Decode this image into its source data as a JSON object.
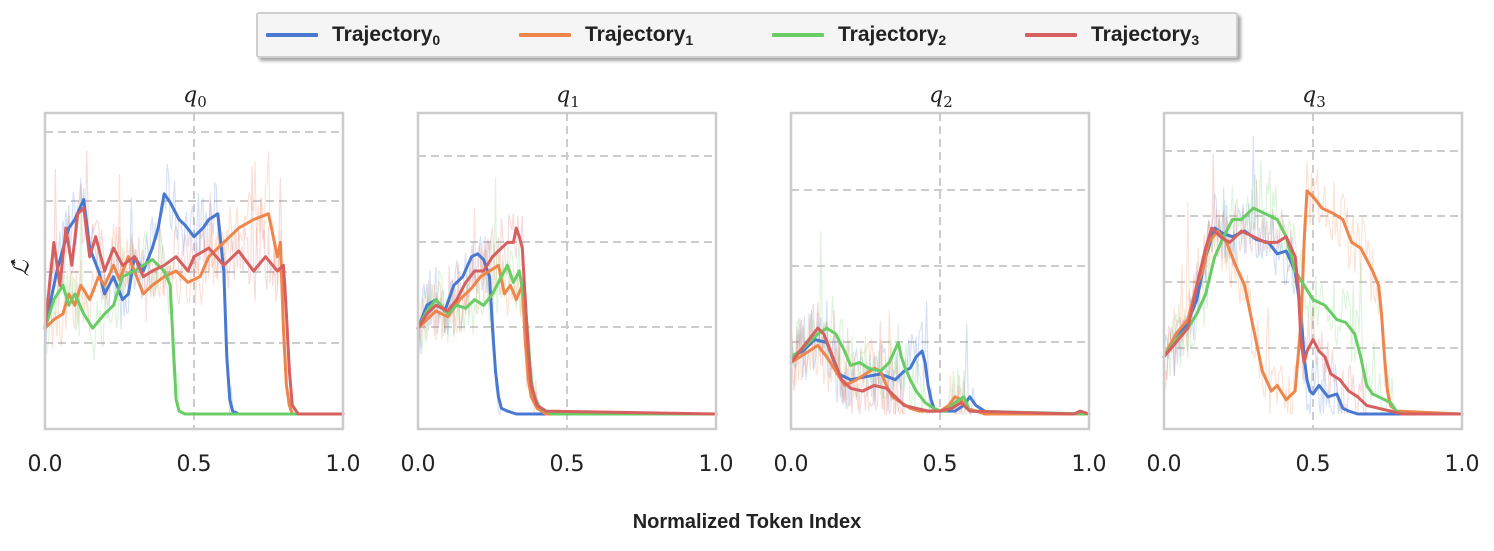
{
  "chart_data": {
    "type": "line",
    "xlabel": "Normalized Token Index",
    "ylabel": "ℒ̂",
    "xlim": [
      0,
      1
    ],
    "x_ticks": [
      "0.0",
      "0.5",
      "1.0"
    ],
    "legend_position": "top-center",
    "series_names": [
      {
        "base": "Trajectory",
        "sub": "0"
      },
      {
        "base": "Trajectory",
        "sub": "1"
      },
      {
        "base": "Trajectory",
        "sub": "2"
      },
      {
        "base": "Trajectory",
        "sub": "3"
      }
    ],
    "colors": [
      "#4878d0",
      "#ee854a",
      "#6acc64",
      "#d65f5f"
    ],
    "ylim": [
      0,
      1
    ],
    "panels": [
      {
        "title": {
          "base": "q",
          "sub": "0"
        },
        "series": [
          {
            "name": "Trajectory0",
            "x": [
              0,
              0.04,
              0.08,
              0.1,
              0.13,
              0.15,
              0.18,
              0.2,
              0.23,
              0.26,
              0.28,
              0.3,
              0.33,
              0.36,
              0.38,
              0.4,
              0.42,
              0.45,
              0.47,
              0.5,
              0.53,
              0.55,
              0.58,
              0.6,
              0.61,
              0.62,
              0.63,
              0.65,
              0.7,
              1.0
            ],
            "values": [
              0.3,
              0.5,
              0.65,
              0.68,
              0.75,
              0.58,
              0.5,
              0.42,
              0.48,
              0.4,
              0.42,
              0.55,
              0.5,
              0.58,
              0.65,
              0.77,
              0.74,
              0.68,
              0.66,
              0.62,
              0.65,
              0.68,
              0.7,
              0.5,
              0.2,
              0.05,
              0.01,
              0,
              0,
              0
            ]
          },
          {
            "name": "Trajectory1",
            "x": [
              0,
              0.03,
              0.06,
              0.08,
              0.1,
              0.12,
              0.15,
              0.18,
              0.2,
              0.23,
              0.25,
              0.28,
              0.3,
              0.33,
              0.36,
              0.4,
              0.44,
              0.48,
              0.52,
              0.55,
              0.6,
              0.65,
              0.7,
              0.75,
              0.78,
              0.79,
              0.8,
              0.81,
              0.82,
              0.83,
              0.85,
              1.0
            ],
            "values": [
              0.3,
              0.33,
              0.35,
              0.42,
              0.38,
              0.45,
              0.4,
              0.48,
              0.45,
              0.52,
              0.47,
              0.55,
              0.5,
              0.42,
              0.45,
              0.48,
              0.5,
              0.46,
              0.48,
              0.55,
              0.6,
              0.65,
              0.68,
              0.7,
              0.55,
              0.6,
              0.3,
              0.1,
              0.03,
              0,
              0,
              0
            ]
          },
          {
            "name": "Trajectory2",
            "x": [
              0,
              0.03,
              0.06,
              0.08,
              0.1,
              0.13,
              0.16,
              0.2,
              0.23,
              0.26,
              0.3,
              0.33,
              0.36,
              0.4,
              0.42,
              0.43,
              0.44,
              0.45,
              0.47,
              1.0
            ],
            "values": [
              0.3,
              0.4,
              0.45,
              0.38,
              0.42,
              0.35,
              0.3,
              0.35,
              0.38,
              0.48,
              0.5,
              0.52,
              0.54,
              0.5,
              0.45,
              0.25,
              0.05,
              0.01,
              0,
              0
            ]
          },
          {
            "name": "Trajectory3",
            "x": [
              0,
              0.03,
              0.05,
              0.07,
              0.09,
              0.11,
              0.13,
              0.15,
              0.17,
              0.2,
              0.23,
              0.26,
              0.3,
              0.33,
              0.36,
              0.4,
              0.44,
              0.48,
              0.5,
              0.55,
              0.6,
              0.65,
              0.7,
              0.74,
              0.78,
              0.8,
              0.81,
              0.82,
              0.83,
              0.85,
              1.0
            ],
            "values": [
              0.3,
              0.6,
              0.45,
              0.65,
              0.52,
              0.7,
              0.72,
              0.55,
              0.62,
              0.5,
              0.58,
              0.52,
              0.55,
              0.48,
              0.5,
              0.52,
              0.55,
              0.5,
              0.55,
              0.58,
              0.52,
              0.57,
              0.5,
              0.55,
              0.5,
              0.52,
              0.35,
              0.15,
              0.03,
              0,
              0
            ]
          }
        ]
      },
      {
        "title": {
          "base": "q",
          "sub": "1"
        },
        "series": [
          {
            "name": "Trajectory0",
            "x": [
              0,
              0.03,
              0.06,
              0.09,
              0.12,
              0.15,
              0.18,
              0.2,
              0.22,
              0.24,
              0.25,
              0.26,
              0.27,
              0.28,
              0.3,
              0.33,
              1.0
            ],
            "values": [
              0.3,
              0.38,
              0.4,
              0.36,
              0.45,
              0.48,
              0.55,
              0.56,
              0.54,
              0.48,
              0.3,
              0.15,
              0.06,
              0.02,
              0.01,
              0,
              0
            ]
          },
          {
            "name": "Trajectory1",
            "x": [
              0,
              0.03,
              0.06,
              0.1,
              0.14,
              0.18,
              0.21,
              0.24,
              0.27,
              0.29,
              0.31,
              0.33,
              0.35,
              0.36,
              0.37,
              0.38,
              0.4,
              0.43,
              1.0
            ],
            "values": [
              0.3,
              0.33,
              0.36,
              0.34,
              0.4,
              0.44,
              0.48,
              0.5,
              0.52,
              0.42,
              0.45,
              0.4,
              0.45,
              0.25,
              0.12,
              0.06,
              0.02,
              0,
              0
            ]
          },
          {
            "name": "Trajectory2",
            "x": [
              0,
              0.03,
              0.06,
              0.1,
              0.13,
              0.16,
              0.19,
              0.22,
              0.25,
              0.28,
              0.3,
              0.32,
              0.34,
              0.36,
              0.37,
              0.38,
              0.39,
              0.41,
              0.45,
              1.0
            ],
            "values": [
              0.3,
              0.36,
              0.4,
              0.35,
              0.38,
              0.37,
              0.4,
              0.38,
              0.42,
              0.48,
              0.52,
              0.46,
              0.5,
              0.38,
              0.25,
              0.12,
              0.06,
              0.02,
              0,
              0
            ]
          },
          {
            "name": "Trajectory3",
            "x": [
              0,
              0.03,
              0.06,
              0.1,
              0.13,
              0.16,
              0.19,
              0.22,
              0.25,
              0.28,
              0.3,
              0.32,
              0.33,
              0.34,
              0.35,
              0.36,
              0.37,
              0.38,
              0.4,
              0.43,
              1.0
            ],
            "values": [
              0.3,
              0.35,
              0.38,
              0.36,
              0.4,
              0.46,
              0.5,
              0.5,
              0.55,
              0.58,
              0.6,
              0.6,
              0.65,
              0.62,
              0.58,
              0.4,
              0.22,
              0.1,
              0.03,
              0.01,
              0
            ]
          }
        ]
      },
      {
        "title": {
          "base": "q",
          "sub": "2"
        },
        "series": [
          {
            "name": "Trajectory0",
            "x": [
              0,
              0.04,
              0.08,
              0.12,
              0.16,
              0.2,
              0.25,
              0.3,
              0.35,
              0.38,
              0.4,
              0.42,
              0.44,
              0.45,
              0.46,
              0.47,
              0.48,
              0.5,
              0.55,
              0.58,
              0.6,
              0.62,
              0.65,
              0.7,
              1.0
            ],
            "values": [
              0.2,
              0.22,
              0.26,
              0.25,
              0.14,
              0.12,
              0.13,
              0.14,
              0.12,
              0.15,
              0.16,
              0.2,
              0.22,
              0.18,
              0.1,
              0.05,
              0.02,
              0.01,
              0.01,
              0.03,
              0.06,
              0.03,
              0.01,
              0,
              0
            ]
          },
          {
            "name": "Trajectory1",
            "x": [
              0,
              0.03,
              0.06,
              0.09,
              0.12,
              0.15,
              0.18,
              0.22,
              0.25,
              0.28,
              0.3,
              0.32,
              0.34,
              0.37,
              0.4,
              0.43,
              0.46,
              0.5,
              0.53,
              0.55,
              0.57,
              0.59,
              0.62,
              0.65,
              1.0
            ],
            "values": [
              0.18,
              0.2,
              0.22,
              0.24,
              0.2,
              0.15,
              0.1,
              0.12,
              0.14,
              0.16,
              0.15,
              0.1,
              0.06,
              0.04,
              0.02,
              0.01,
              0.01,
              0.01,
              0.03,
              0.06,
              0.05,
              0.02,
              0.01,
              0,
              0
            ]
          },
          {
            "name": "Trajectory2",
            "x": [
              0,
              0.03,
              0.06,
              0.09,
              0.12,
              0.15,
              0.18,
              0.2,
              0.23,
              0.26,
              0.3,
              0.33,
              0.36,
              0.37,
              0.38,
              0.4,
              0.42,
              0.45,
              0.48,
              0.5,
              0.52,
              0.55,
              0.58,
              0.6,
              1.0
            ],
            "values": [
              0.2,
              0.22,
              0.25,
              0.28,
              0.3,
              0.28,
              0.22,
              0.17,
              0.18,
              0.16,
              0.15,
              0.18,
              0.25,
              0.2,
              0.17,
              0.12,
              0.08,
              0.04,
              0.02,
              0.01,
              0.01,
              0.04,
              0.06,
              0.01,
              0
            ]
          },
          {
            "name": "Trajectory3",
            "x": [
              0,
              0.03,
              0.06,
              0.09,
              0.11,
              0.14,
              0.17,
              0.2,
              0.24,
              0.28,
              0.32,
              0.35,
              0.38,
              0.42,
              0.46,
              0.5,
              0.54,
              0.57,
              0.6,
              0.95,
              0.97,
              1.0
            ],
            "values": [
              0.18,
              0.22,
              0.26,
              0.3,
              0.28,
              0.2,
              0.12,
              0.09,
              0.08,
              0.1,
              0.09,
              0.06,
              0.03,
              0.02,
              0.01,
              0.01,
              0.02,
              0.04,
              0.01,
              0,
              0.01,
              0
            ]
          }
        ]
      },
      {
        "title": {
          "base": "q",
          "sub": "3"
        },
        "series": [
          {
            "name": "Trajectory0",
            "x": [
              0,
              0.04,
              0.08,
              0.11,
              0.14,
              0.17,
              0.2,
              0.23,
              0.27,
              0.31,
              0.35,
              0.38,
              0.41,
              0.44,
              0.46,
              0.47,
              0.48,
              0.49,
              0.5,
              0.52,
              0.55,
              0.58,
              0.6,
              0.62,
              0.65,
              0.7,
              1.0
            ],
            "values": [
              0.2,
              0.26,
              0.32,
              0.4,
              0.55,
              0.65,
              0.63,
              0.62,
              0.64,
              0.61,
              0.6,
              0.56,
              0.57,
              0.5,
              0.35,
              0.2,
              0.12,
              0.08,
              0.07,
              0.1,
              0.06,
              0.07,
              0.02,
              0.01,
              0,
              0,
              0
            ]
          },
          {
            "name": "Trajectory1",
            "x": [
              0,
              0.04,
              0.08,
              0.11,
              0.13,
              0.15,
              0.18,
              0.21,
              0.24,
              0.27,
              0.3,
              0.33,
              0.36,
              0.38,
              0.41,
              0.44,
              0.46,
              0.47,
              0.48,
              0.5,
              0.53,
              0.57,
              0.6,
              0.63,
              0.66,
              0.7,
              0.72,
              0.73,
              0.74,
              0.75,
              0.76,
              0.78,
              1.0
            ],
            "values": [
              0.2,
              0.28,
              0.33,
              0.45,
              0.5,
              0.6,
              0.64,
              0.6,
              0.52,
              0.45,
              0.3,
              0.15,
              0.08,
              0.1,
              0.05,
              0.08,
              0.32,
              0.6,
              0.78,
              0.76,
              0.72,
              0.7,
              0.68,
              0.6,
              0.58,
              0.5,
              0.45,
              0.35,
              0.2,
              0.08,
              0.03,
              0.01,
              0
            ]
          },
          {
            "name": "Trajectory2",
            "x": [
              0,
              0.04,
              0.08,
              0.11,
              0.14,
              0.17,
              0.2,
              0.23,
              0.26,
              0.3,
              0.34,
              0.38,
              0.41,
              0.44,
              0.47,
              0.5,
              0.54,
              0.58,
              0.61,
              0.64,
              0.66,
              0.68,
              0.7,
              0.72,
              0.74,
              0.76,
              0.78,
              0.8,
              1.0
            ],
            "values": [
              0.2,
              0.26,
              0.3,
              0.35,
              0.42,
              0.55,
              0.62,
              0.68,
              0.68,
              0.72,
              0.7,
              0.68,
              0.62,
              0.5,
              0.45,
              0.4,
              0.38,
              0.33,
              0.32,
              0.28,
              0.2,
              0.1,
              0.07,
              0.06,
              0.05,
              0.04,
              0.01,
              0,
              0
            ]
          },
          {
            "name": "Trajectory3",
            "x": [
              0,
              0.04,
              0.08,
              0.11,
              0.14,
              0.16,
              0.19,
              0.22,
              0.26,
              0.3,
              0.34,
              0.38,
              0.41,
              0.44,
              0.45,
              0.46,
              0.47,
              0.48,
              0.5,
              0.52,
              0.54,
              0.56,
              0.59,
              0.62,
              0.65,
              0.68,
              0.72,
              0.76,
              0.8,
              1.0
            ],
            "values": [
              0.2,
              0.25,
              0.3,
              0.45,
              0.58,
              0.65,
              0.62,
              0.6,
              0.64,
              0.62,
              0.6,
              0.6,
              0.62,
              0.55,
              0.45,
              0.25,
              0.18,
              0.22,
              0.26,
              0.22,
              0.2,
              0.14,
              0.12,
              0.08,
              0.06,
              0.03,
              0.02,
              0.01,
              0,
              0
            ]
          }
        ]
      }
    ]
  }
}
